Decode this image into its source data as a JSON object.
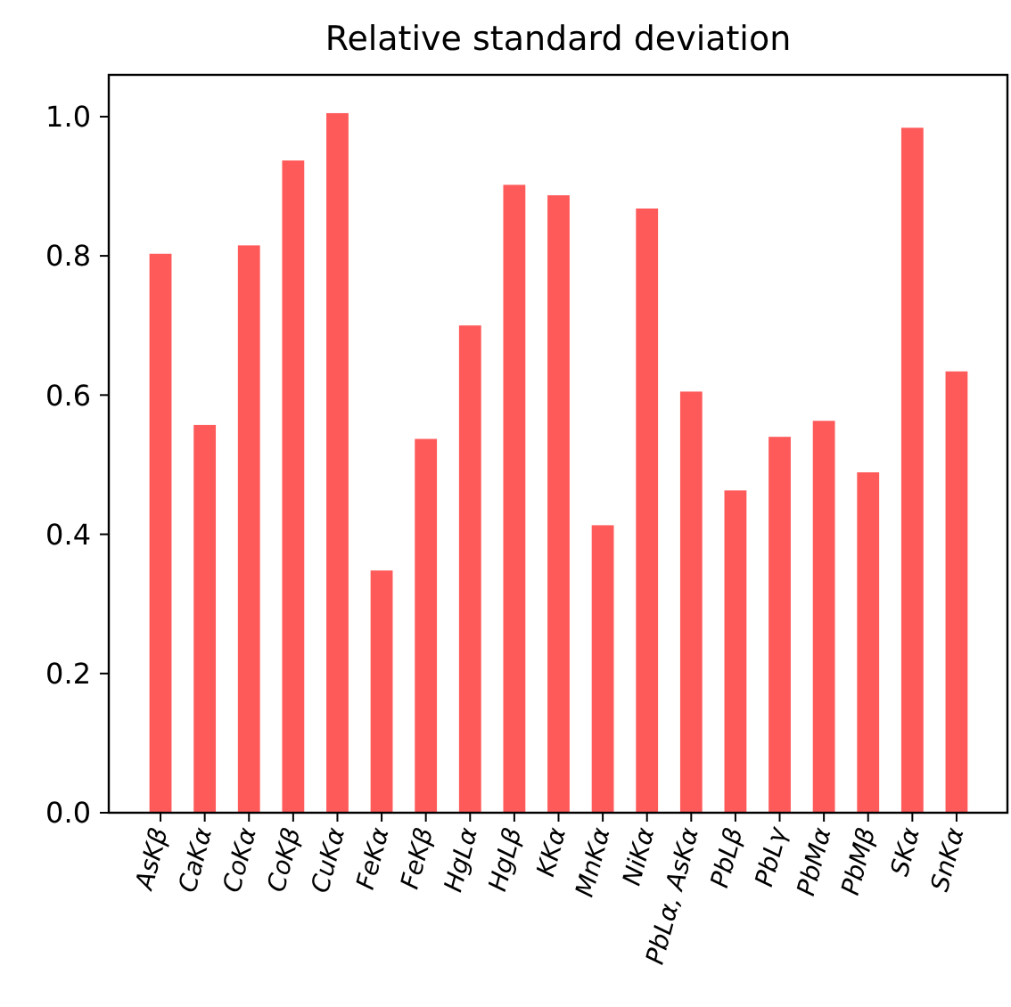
{
  "chart_data": {
    "type": "bar",
    "title": "Relative standard deviation",
    "categories": [
      "AsKβ",
      "CaKα",
      "CoKα",
      "CoKβ",
      "CuKα",
      "FeKα",
      "FeKβ",
      "HgLα",
      "HgLβ",
      "KKα",
      "MnKα",
      "NiKα",
      "PbLα, AsKα",
      "PbLβ",
      "PbLγ",
      "PbMα",
      "PbMβ",
      "SKα",
      "SnKα"
    ],
    "values": [
      0.803,
      0.557,
      0.815,
      0.937,
      1.005,
      0.348,
      0.537,
      0.7,
      0.902,
      0.887,
      0.413,
      0.868,
      0.605,
      0.463,
      0.54,
      0.563,
      0.489,
      0.984,
      0.634
    ],
    "color": "#ff5a5a",
    "ylim": [
      0,
      1.06
    ],
    "yticks": [
      {
        "value": 0,
        "label": "0.0"
      },
      {
        "value": 0.2,
        "label": "0.2"
      },
      {
        "value": 0.4,
        "label": "0.4"
      },
      {
        "value": 0.6,
        "label": "0.6"
      },
      {
        "value": 0.8,
        "label": "0.8"
      },
      {
        "value": 1,
        "label": "1.0"
      }
    ],
    "grid": false
  }
}
